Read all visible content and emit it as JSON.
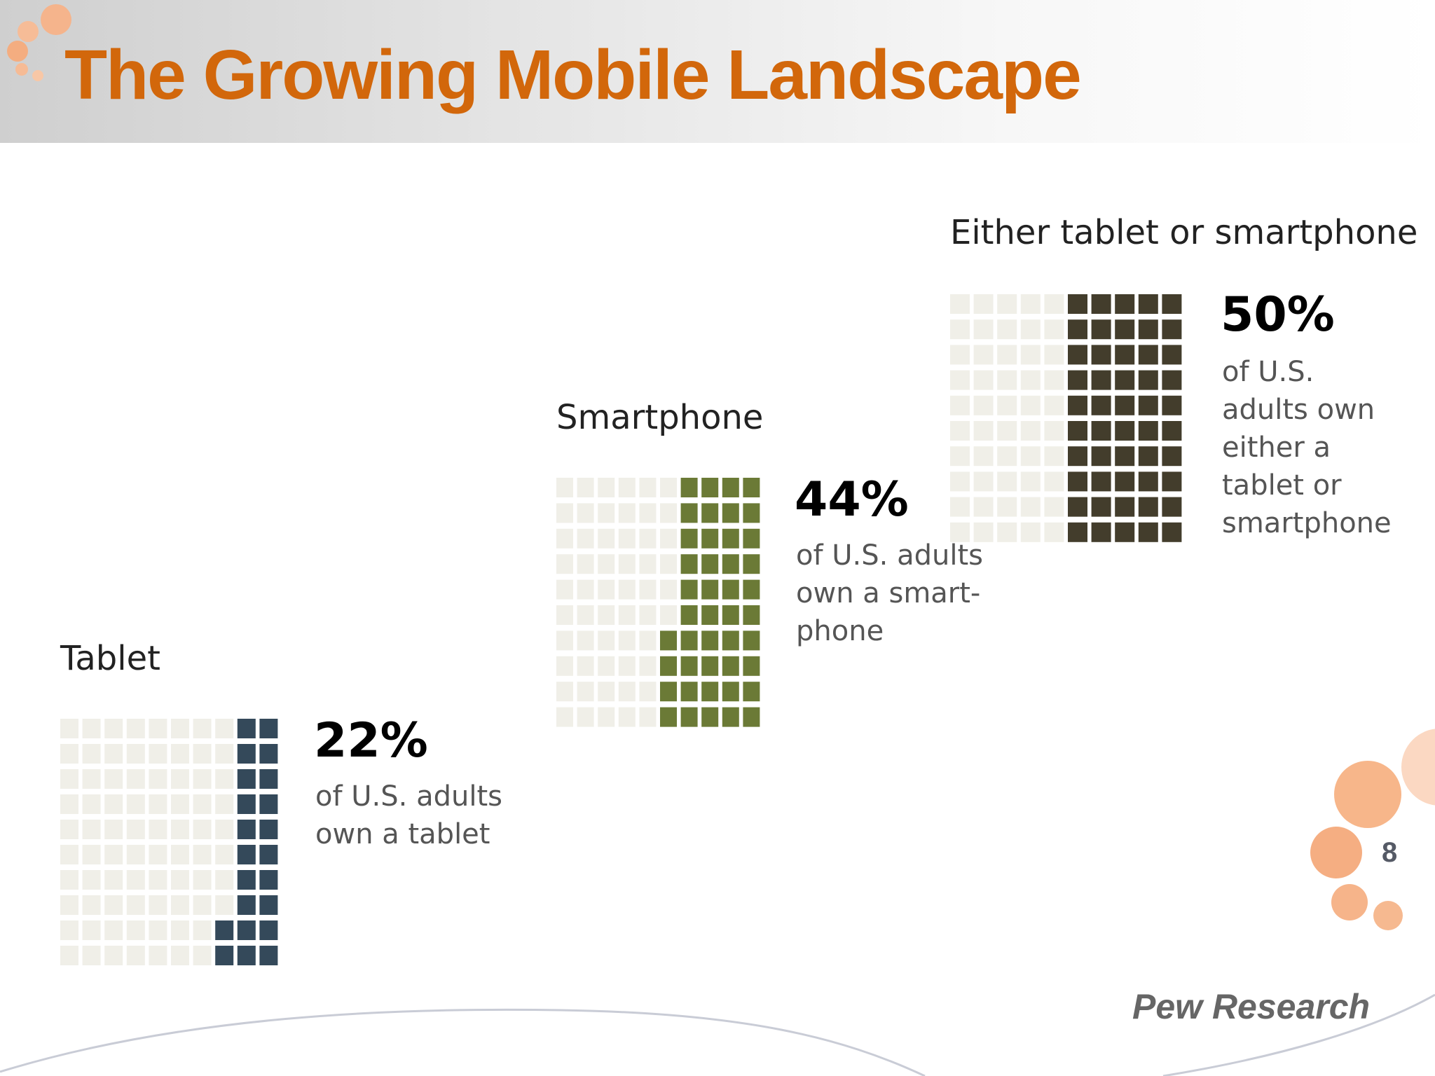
{
  "slide": {
    "title": "The Growing Mobile Landscape",
    "page_number": "8",
    "source": "Pew Research"
  },
  "colors": {
    "title": "#d2670b",
    "tablet": "#34495a",
    "smartphone": "#6b7a36",
    "either": "#433d2c",
    "empty_cell": "#f0efe8",
    "accent_dots": "#f7b68a"
  },
  "chart_data": {
    "type": "waffle",
    "grid": "10x10",
    "unit": "percent",
    "items": [
      {
        "category": "Tablet",
        "value": 22,
        "value_label": "22%",
        "description": "of U.S. adults\nown a tablet"
      },
      {
        "category": "Smartphone",
        "value": 44,
        "value_label": "44%",
        "description": "of U.S. adults\nown a smart-\nphone"
      },
      {
        "category": "Either tablet or smartphone",
        "value": 50,
        "value_label": "50%",
        "description": "of U.S.\nadults own\neither a\ntablet or\nsmartphone"
      }
    ]
  }
}
